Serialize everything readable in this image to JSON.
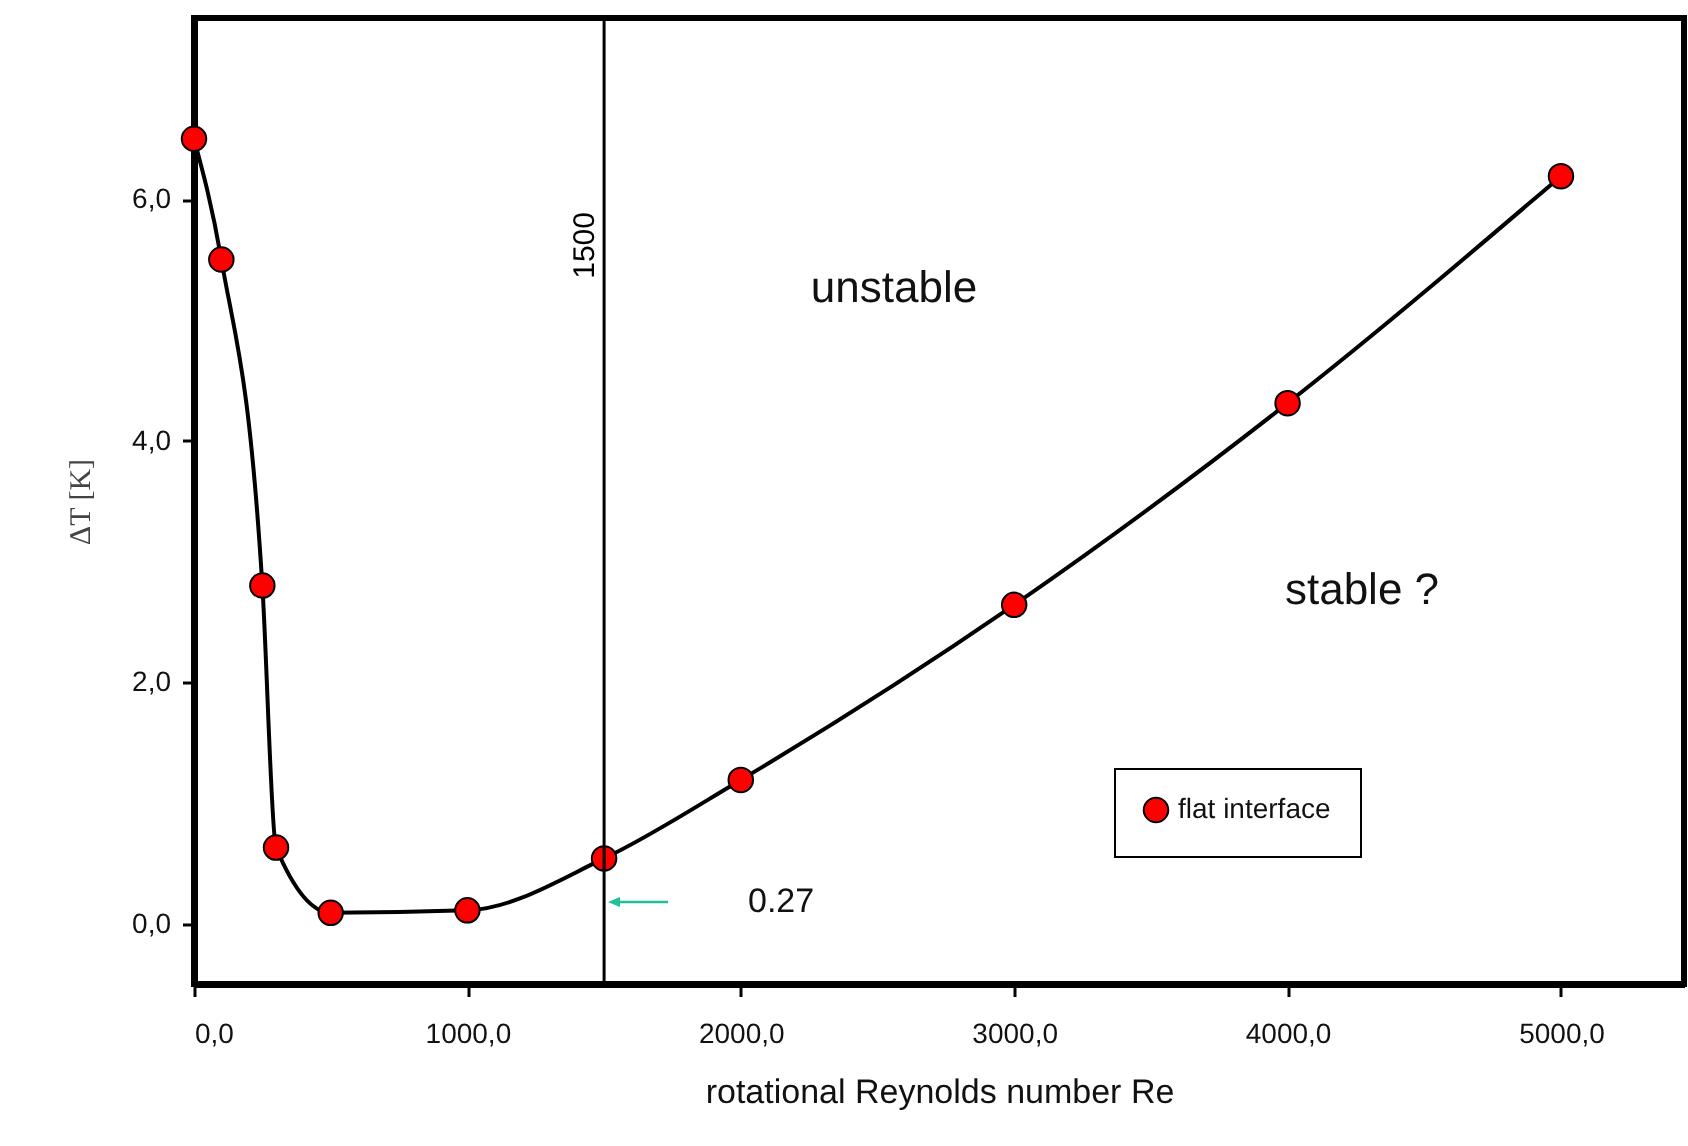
{
  "chart_data": {
    "type": "line",
    "xlabel": "rotational Reynolds number Re",
    "ylabel": "ΔT [K]",
    "x": [
      0,
      100,
      250,
      300,
      500,
      1000,
      1500,
      2000,
      3000,
      4000,
      5000
    ],
    "series": [
      {
        "name": "flat interface",
        "color": "#ff0000",
        "values": [
          6.5,
          5.5,
          2.8,
          0.63,
          0.09,
          0.11,
          0.54,
          1.19,
          2.64,
          4.31,
          6.19
        ]
      }
    ],
    "xlim": [
      0,
      5450
    ],
    "ylim": [
      -0.5,
      7.5
    ],
    "xticks": [
      {
        "value": 0,
        "label": "0,0"
      },
      {
        "value": 1000,
        "label": "1000,0"
      },
      {
        "value": 2000,
        "label": "2000,0"
      },
      {
        "value": 3000,
        "label": "3000,0"
      },
      {
        "value": 4000,
        "label": "4000,0"
      },
      {
        "value": 5000,
        "label": "5000,0"
      }
    ],
    "yticks": [
      {
        "value": 0,
        "label": "0,0"
      },
      {
        "value": 2,
        "label": "2,0"
      },
      {
        "value": 4,
        "label": "4,0"
      },
      {
        "value": 6,
        "label": "6,0"
      }
    ],
    "ref_lines": [
      {
        "axis": "x",
        "value": 1500,
        "label": "1500"
      }
    ],
    "annotations": [
      "unstable",
      "stable ?",
      "0.27"
    ],
    "marker": "circle",
    "legend": "bottom right",
    "grid": false
  }
}
